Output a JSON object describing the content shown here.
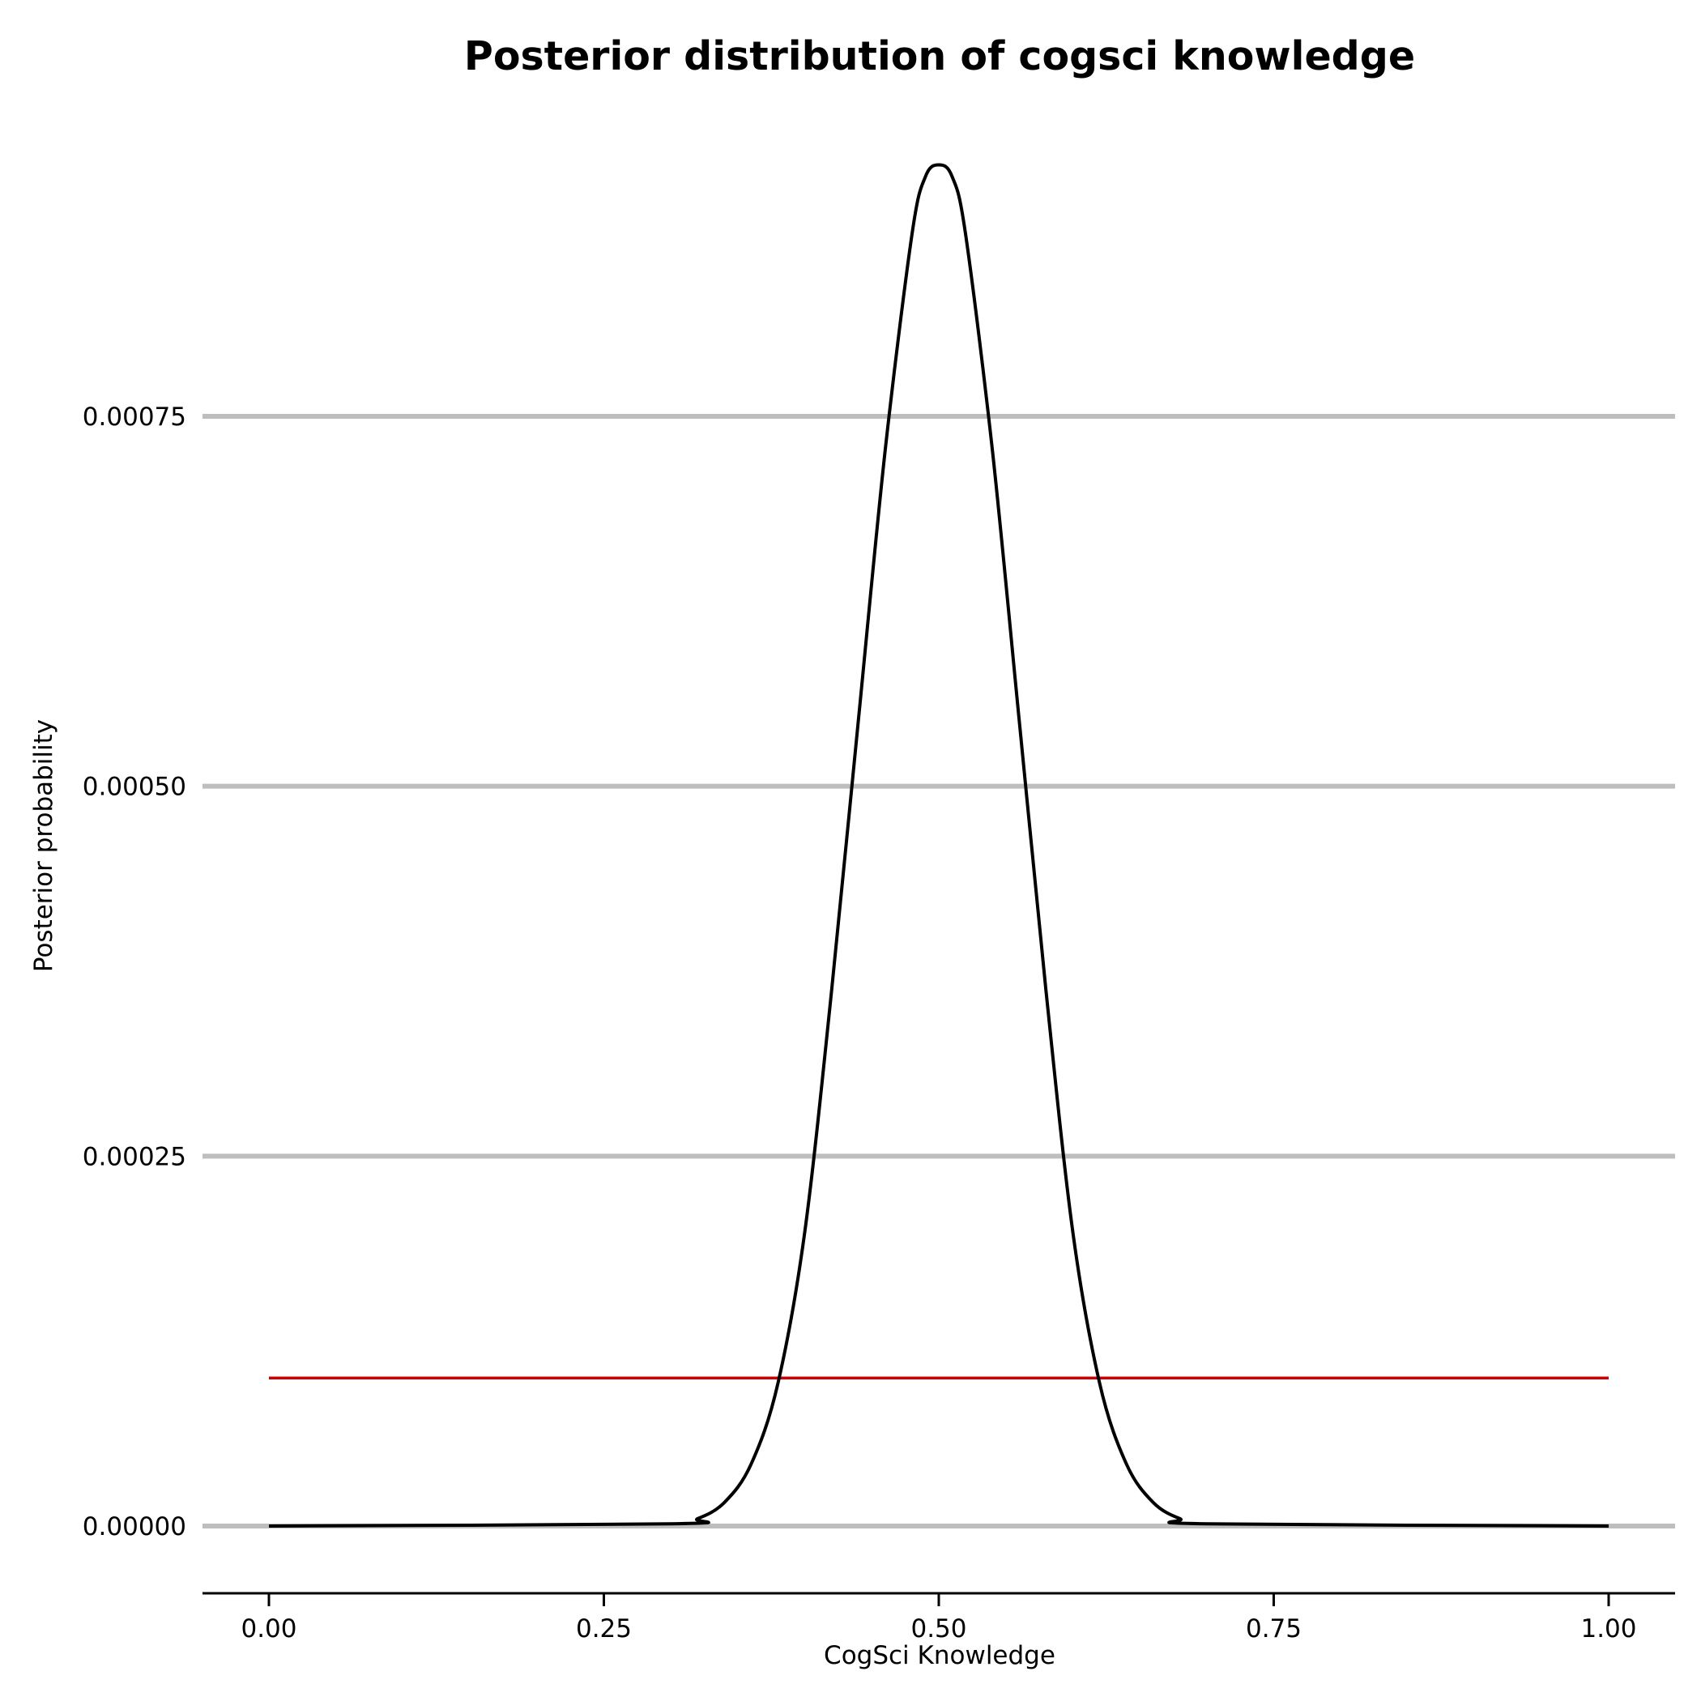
{
  "chart_data": {
    "type": "line",
    "title": "Posterior distribution of cogsci knowledge",
    "xlabel": "CogSci Knowledge",
    "ylabel": "Posterior probability",
    "xlim": [
      0,
      1
    ],
    "ylim": [
      0,
      0.00092
    ],
    "xticks": [
      0,
      0.25,
      0.5,
      0.75,
      1
    ],
    "xtick_labels": [
      "0.00",
      "0.25",
      "0.50",
      "0.75",
      "1.00"
    ],
    "yticks": [
      0,
      0.00025,
      0.0005,
      0.00075
    ],
    "ytick_labels": [
      "0.00000",
      "0.00025",
      "0.00050",
      "0.00075"
    ],
    "grid": "horizontal major",
    "series": [
      {
        "color": "#000000",
        "x": [
          0,
          0.3,
          0.32,
          0.34,
          0.36,
          0.38,
          0.4,
          0.42,
          0.44,
          0.46,
          0.48,
          0.49,
          0.5,
          0.51,
          0.52,
          0.54,
          0.56,
          0.58,
          0.6,
          0.62,
          0.64,
          0.66,
          0.68,
          0.7,
          1
        ],
        "y": [
          0,
          1.5e-06,
          5e-06,
          1.6e-05,
          4.2e-05,
          9.67e-05,
          0.000199,
          0.000362,
          0.000545,
          0.000727,
          0.000873,
          0.000912,
          0.00092,
          0.000912,
          0.000873,
          0.000727,
          0.000545,
          0.000362,
          0.000199,
          9.67e-05,
          4.2e-05,
          1.6e-05,
          5e-06,
          1.5e-06,
          0
        ]
      },
      {
        "color": "#cc0000",
        "x": [
          0,
          1
        ],
        "y": [
          0.0001,
          0.0001
        ]
      }
    ]
  }
}
